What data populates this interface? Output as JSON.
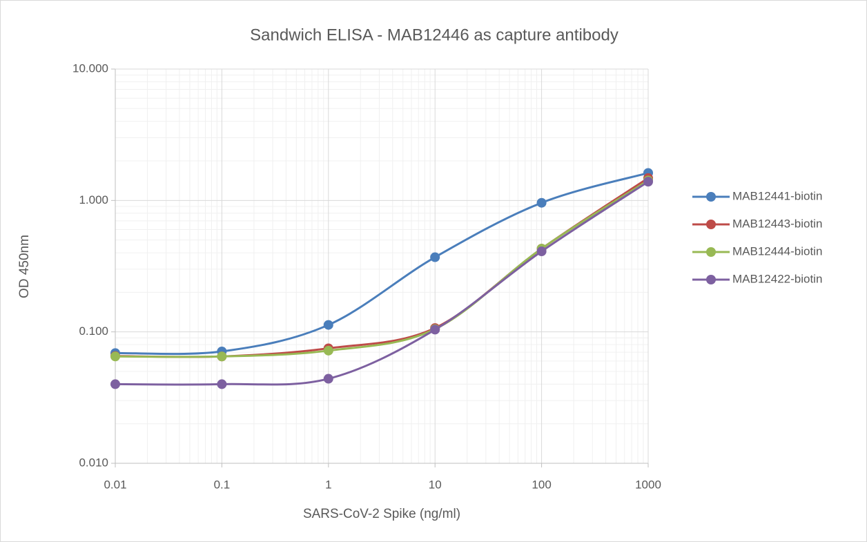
{
  "chart_data": {
    "type": "line",
    "title": "Sandwich ELISA - MAB12446 as capture antibody",
    "x_label": "SARS-CoV-2 Spike (ng/ml)",
    "y_label": "OD 450nm",
    "xscale": "log",
    "yscale": "log",
    "grid": true,
    "minor_grid": true,
    "smooth": true,
    "legend": "right",
    "x": [
      0.01,
      0.1,
      1,
      10,
      100,
      1000
    ],
    "xlim": [
      0.01,
      1000
    ],
    "xticks": [
      0.01,
      0.1,
      1,
      10,
      100,
      1000
    ],
    "ylim": [
      0.01,
      10
    ],
    "yticks": [
      {
        "value": 0.01,
        "label": "0.010"
      },
      {
        "value": 0.1,
        "label": "0.100"
      },
      {
        "value": 1,
        "label": "1.000"
      },
      {
        "value": 10,
        "label": "10.000"
      }
    ],
    "series": [
      {
        "name": "MAB12441-biotin",
        "color": "#4a7ebb",
        "values": [
          0.069,
          0.071,
          0.113,
          0.37,
          0.96,
          1.62
        ]
      },
      {
        "name": "MAB12443-biotin",
        "color": "#be4b48",
        "values": [
          0.0655,
          0.065,
          0.075,
          0.107,
          0.43,
          1.48
        ]
      },
      {
        "name": "MAB12444-biotin",
        "color": "#98b954",
        "values": [
          0.065,
          0.065,
          0.072,
          0.105,
          0.43,
          1.42
        ]
      },
      {
        "name": "MAB12422-biotin",
        "color": "#7d60a0",
        "values": [
          0.04,
          0.04,
          0.044,
          0.104,
          0.41,
          1.39
        ]
      }
    ]
  }
}
